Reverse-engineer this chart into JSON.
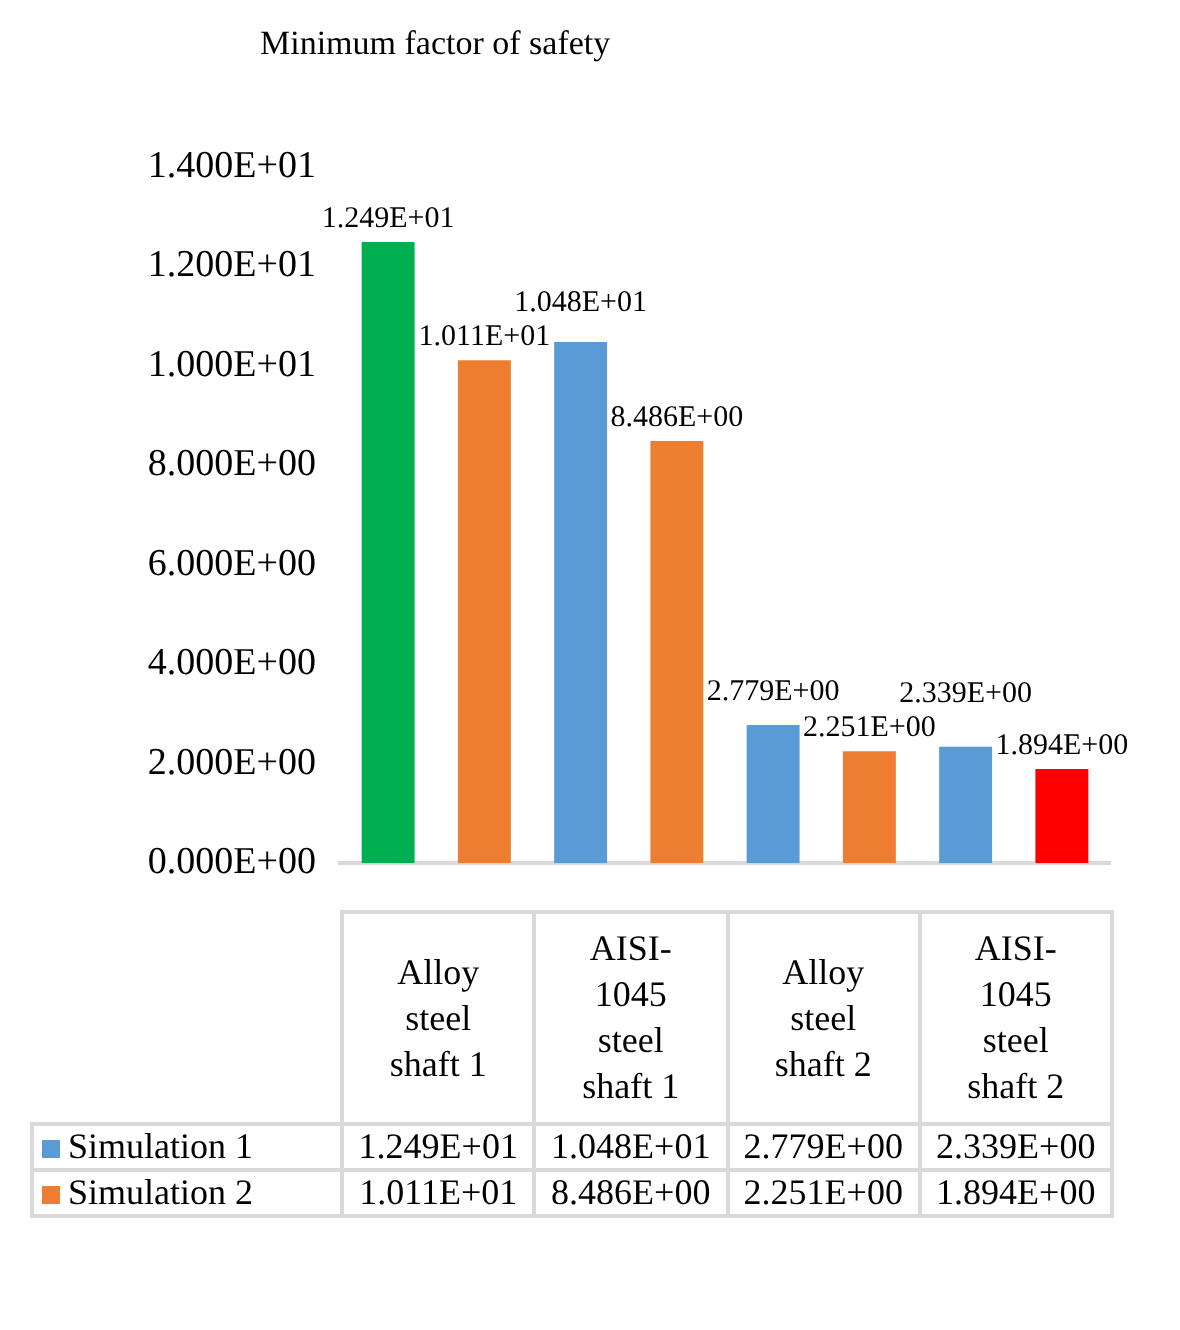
{
  "chart_data": {
    "type": "bar",
    "title": "Minimum factor of safety",
    "categories": [
      "Alloy steel shaft 1",
      "AISI-1045 steel shaft 1",
      "Alloy steel shaft 2",
      "AISI-1045 steel shaft 2"
    ],
    "series": [
      {
        "name": "Simulation 1",
        "color": "#5b9bd5",
        "colors": [
          "#00b050",
          "#5b9bd5",
          "#5b9bd5",
          "#5b9bd5"
        ],
        "values": [
          12.49,
          10.48,
          2.779,
          2.339
        ],
        "value_labels": [
          "1.249E+01",
          "1.048E+01",
          "2.779E+00",
          "2.339E+00"
        ]
      },
      {
        "name": "Simulation 2",
        "color": "#ed7d31",
        "colors": [
          "#ed7d31",
          "#ed7d31",
          "#ed7d31",
          "#ff0000"
        ],
        "values": [
          10.11,
          8.486,
          2.251,
          1.894
        ],
        "value_labels": [
          "1.011E+01",
          "8.486E+00",
          "2.251E+00",
          "1.894E+00"
        ]
      }
    ],
    "ylim": [
      0,
      14
    ],
    "yticks": [
      {
        "value": 0,
        "label": "0.000E+00"
      },
      {
        "value": 2,
        "label": "2.000E+00"
      },
      {
        "value": 4,
        "label": "4.000E+00"
      },
      {
        "value": 6,
        "label": "6.000E+00"
      },
      {
        "value": 8,
        "label": "8.000E+00"
      },
      {
        "value": 10,
        "label": "1.000E+01"
      },
      {
        "value": 12,
        "label": "1.200E+01"
      },
      {
        "value": 14,
        "label": "1.400E+01"
      }
    ],
    "grid": false,
    "legend": "bottom"
  }
}
